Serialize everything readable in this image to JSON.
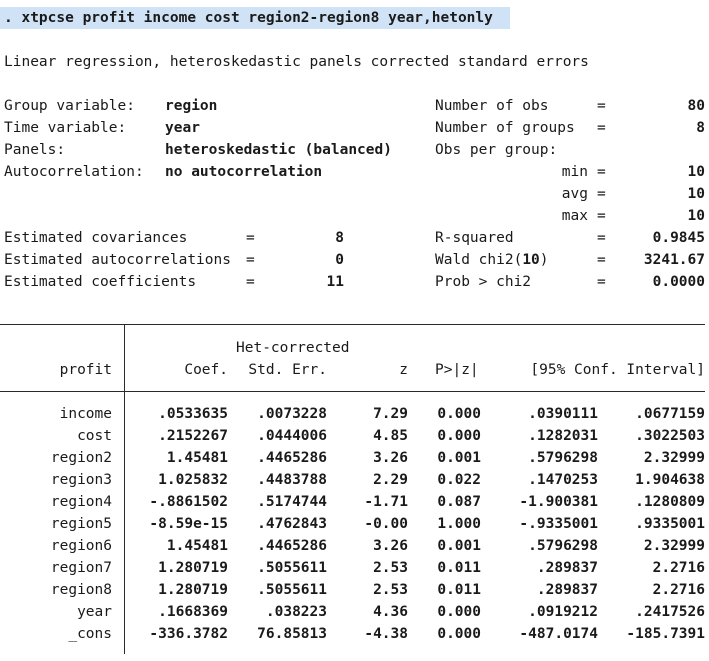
{
  "command": ". xtpcse profit income cost region2-region8 year,hetonly",
  "title": "Linear regression, heteroskedastic panels corrected standard errors",
  "header_left": [
    {
      "label": "Group variable:",
      "value": "region"
    },
    {
      "label": "Time variable:",
      "value": "year"
    },
    {
      "label": "Panels:",
      "value": "heteroskedastic (balanced)"
    },
    {
      "label": "Autocorrelation:",
      "value": "no autocorrelation"
    }
  ],
  "header_right": {
    "n_obs_label": "Number of obs",
    "n_obs": "80",
    "n_groups_label": "Number of groups",
    "n_groups": "8",
    "obs_per_group_label": "Obs per group:",
    "min_label": "min",
    "min": "10",
    "avg_label": "avg",
    "avg": "10",
    "max_label": "max",
    "max": "10"
  },
  "estimates_left": [
    {
      "label": "Estimated covariances",
      "value": "8"
    },
    {
      "label": "Estimated autocorrelations",
      "value": "0"
    },
    {
      "label": "Estimated coefficients",
      "value": "11"
    }
  ],
  "estimates_right": [
    {
      "label": "R-squared",
      "value": "0.9845"
    },
    {
      "label": "Wald chi2(",
      "df": "10",
      "label_close": ")",
      "value": "3241.67"
    },
    {
      "label": "Prob > chi2",
      "value": "0.0000"
    }
  ],
  "eq_sign": "=",
  "table": {
    "depvar": "profit",
    "header_top": "Het-corrected",
    "columns": [
      "Coef.",
      "Std. Err.",
      "z",
      "P>|z|",
      "[95% Conf. Interval]"
    ],
    "rows": [
      {
        "var": "income",
        "coef": ".0533635",
        "se": ".0073228",
        "z": "7.29",
        "p": "0.000",
        "lo": ".0390111",
        "hi": ".0677159"
      },
      {
        "var": "cost",
        "coef": ".2152267",
        "se": ".0444006",
        "z": "4.85",
        "p": "0.000",
        "lo": ".1282031",
        "hi": ".3022503"
      },
      {
        "var": "region2",
        "coef": "1.45481",
        "se": ".4465286",
        "z": "3.26",
        "p": "0.001",
        "lo": ".5796298",
        "hi": "2.32999"
      },
      {
        "var": "region3",
        "coef": "1.025832",
        "se": ".4483788",
        "z": "2.29",
        "p": "0.022",
        "lo": ".1470253",
        "hi": "1.904638"
      },
      {
        "var": "region4",
        "coef": "-.8861502",
        "se": ".5174744",
        "z": "-1.71",
        "p": "0.087",
        "lo": "-1.900381",
        "hi": ".1280809"
      },
      {
        "var": "region5",
        "coef": "-8.59e-15",
        "se": ".4762843",
        "z": "-0.00",
        "p": "1.000",
        "lo": "-.9335001",
        "hi": ".9335001"
      },
      {
        "var": "region6",
        "coef": "1.45481",
        "se": ".4465286",
        "z": "3.26",
        "p": "0.001",
        "lo": ".5796298",
        "hi": "2.32999"
      },
      {
        "var": "region7",
        "coef": "1.280719",
        "se": ".5055611",
        "z": "2.53",
        "p": "0.011",
        "lo": ".289837",
        "hi": "2.2716"
      },
      {
        "var": "region8",
        "coef": "1.280719",
        "se": ".5055611",
        "z": "2.53",
        "p": "0.011",
        "lo": ".289837",
        "hi": "2.2716"
      },
      {
        "var": "year",
        "coef": ".1668369",
        "se": ".038223",
        "z": "4.36",
        "p": "0.000",
        "lo": ".0919212",
        "hi": ".2417526"
      },
      {
        "var": "_cons",
        "coef": "-336.3782",
        "se": "76.85813",
        "z": "-4.38",
        "p": "0.000",
        "lo": "-487.0174",
        "hi": "-185.7391"
      }
    ]
  }
}
